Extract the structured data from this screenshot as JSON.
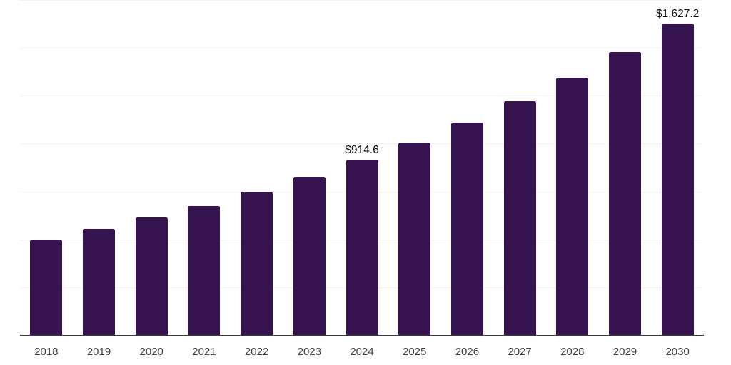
{
  "chart_data": {
    "type": "bar",
    "title": "",
    "xlabel": "",
    "ylabel": "",
    "categories": [
      "2018",
      "2019",
      "2020",
      "2021",
      "2022",
      "2023",
      "2024",
      "2025",
      "2026",
      "2027",
      "2028",
      "2029",
      "2030"
    ],
    "values": [
      499,
      554,
      613,
      675,
      747,
      825,
      914.6,
      1005,
      1108,
      1221,
      1343,
      1478,
      1627.2
    ],
    "annotations": [
      {
        "category": "2024",
        "text": "$914.6"
      },
      {
        "category": "2030",
        "text": "$1,627.2"
      }
    ],
    "ylim": [
      0,
      1750
    ],
    "gridline_interval": 250,
    "grid": true,
    "legend": "none",
    "y_axis_labels_visible": false,
    "bar_color": "#36124e",
    "gridline_color": "#f2f2f2",
    "axis_line_color": "#3a3a3a",
    "tick_label_color": "#404040",
    "annotation_color": "#0d0d0d",
    "background_color": "#ffffff"
  }
}
